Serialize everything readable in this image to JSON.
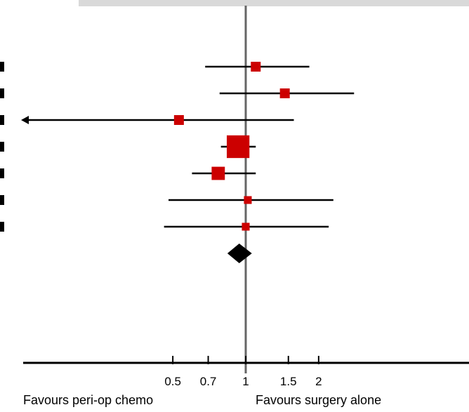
{
  "chart_data": {
    "type": "forest",
    "x_scale": "log",
    "xlim": [
      0.36,
      3.1
    ],
    "x_ticks": [
      0.5,
      0.7,
      1,
      1.5,
      2
    ],
    "x_tick_labels": [
      "0.5",
      "0.7",
      "1",
      "1.5",
      "2"
    ],
    "null_line": 1,
    "left_label": "Favours peri-op chemo",
    "right_label": "Favours surgery alone",
    "studies": [
      {
        "estimate": 1.1,
        "ci_low": 0.68,
        "ci_high": 1.83,
        "weight": 1.0,
        "arrow_left": false
      },
      {
        "estimate": 1.45,
        "ci_low": 0.78,
        "ci_high": 2.8,
        "weight": 1.0,
        "arrow_left": false
      },
      {
        "estimate": 0.53,
        "ci_low": 0.36,
        "ci_high": 1.58,
        "weight": 1.0,
        "arrow_left": true
      },
      {
        "estimate": 0.93,
        "ci_low": 0.79,
        "ci_high": 1.1,
        "weight": 8.0,
        "arrow_left": false
      },
      {
        "estimate": 0.77,
        "ci_low": 0.6,
        "ci_high": 1.1,
        "weight": 2.2,
        "arrow_left": false
      },
      {
        "estimate": 1.02,
        "ci_low": 0.48,
        "ci_high": 2.3,
        "weight": 0.5,
        "arrow_left": false
      },
      {
        "estimate": 1.0,
        "ci_low": 0.46,
        "ci_high": 2.2,
        "weight": 0.5,
        "arrow_left": false
      }
    ],
    "pooled": {
      "estimate": 0.94,
      "ci_low": 0.84,
      "ci_high": 1.06
    },
    "colors": {
      "square": "#cc0000",
      "line": "#000000",
      "null_line": "#666666",
      "diamond": "#000000"
    }
  }
}
